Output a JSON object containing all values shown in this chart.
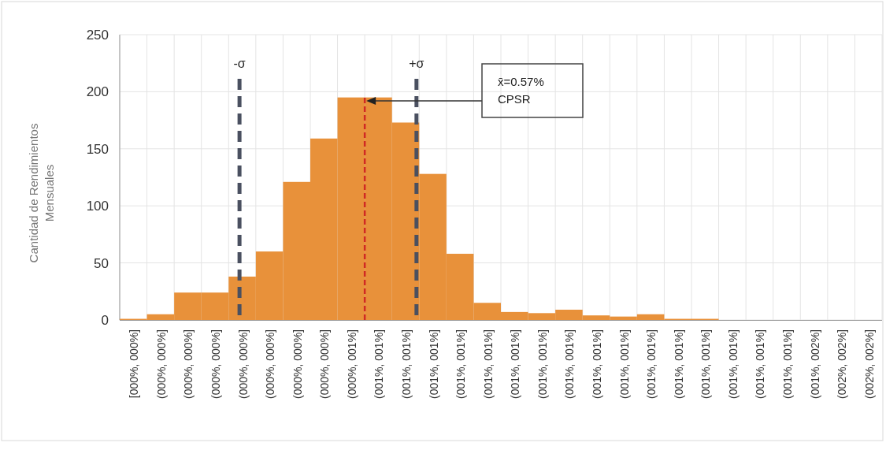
{
  "chart_data": {
    "type": "bar",
    "ylabel": "Cantidad de Rendimientos Mensuales",
    "categories": [
      "[000%, 000%]",
      "(000%, 000%]",
      "(000%, 000%]",
      "(000%, 000%]",
      "(000%, 000%]",
      "(000%, 000%]",
      "(000%, 000%]",
      "(000%, 000%]",
      "(000%, 001%]",
      "(001%, 001%]",
      "(001%, 001%]",
      "(001%, 001%]",
      "(001%, 001%]",
      "(001%, 001%]",
      "(001%, 001%]",
      "(001%, 001%]",
      "(001%, 001%]",
      "(001%, 001%]",
      "(001%, 001%]",
      "(001%, 001%]",
      "(001%, 001%]",
      "(001%, 001%]",
      "(001%, 001%]",
      "(001%, 001%]",
      "(001%, 001%]",
      "(001%, 002%]",
      "(002%, 002%]",
      "(002%, 002%]"
    ],
    "values": [
      1,
      5,
      24,
      24,
      38,
      60,
      121,
      159,
      195,
      195,
      173,
      128,
      58,
      15,
      7,
      6,
      9,
      4,
      3,
      5,
      1,
      1,
      0,
      0,
      0,
      0,
      0,
      0
    ],
    "color": "#e8913a",
    "ylim": [
      0,
      250
    ],
    "yticks": [
      0,
      50,
      100,
      150,
      200,
      250
    ],
    "grid": true,
    "annotations": [
      "-σ",
      "+σ",
      "x̄=0.57% CPSR"
    ]
  }
}
